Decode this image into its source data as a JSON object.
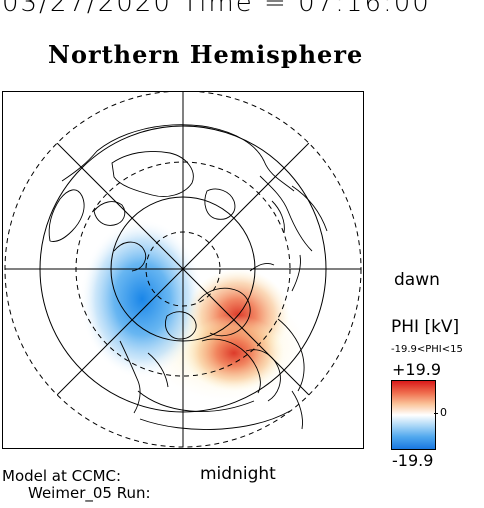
{
  "header": {
    "date_time": "03/27/2020 Time = 07:16:00",
    "title": "Northern Hemisphere"
  },
  "map": {
    "orientation_labels": {
      "right": "dawn",
      "bottom": "midnight"
    }
  },
  "colorbar": {
    "title": "PHI [kV]",
    "range_text": "-19.9<PHI<15",
    "max_label": "+19.9",
    "mid_label": "0",
    "min_label": "-19.9",
    "colors": {
      "positive": "#d91a1a",
      "zero": "#ffffff",
      "negative": "#1977e0"
    }
  },
  "footer": {
    "model_line": "Model at CCMC:",
    "run_line": "Weimer_05 Run:"
  }
}
